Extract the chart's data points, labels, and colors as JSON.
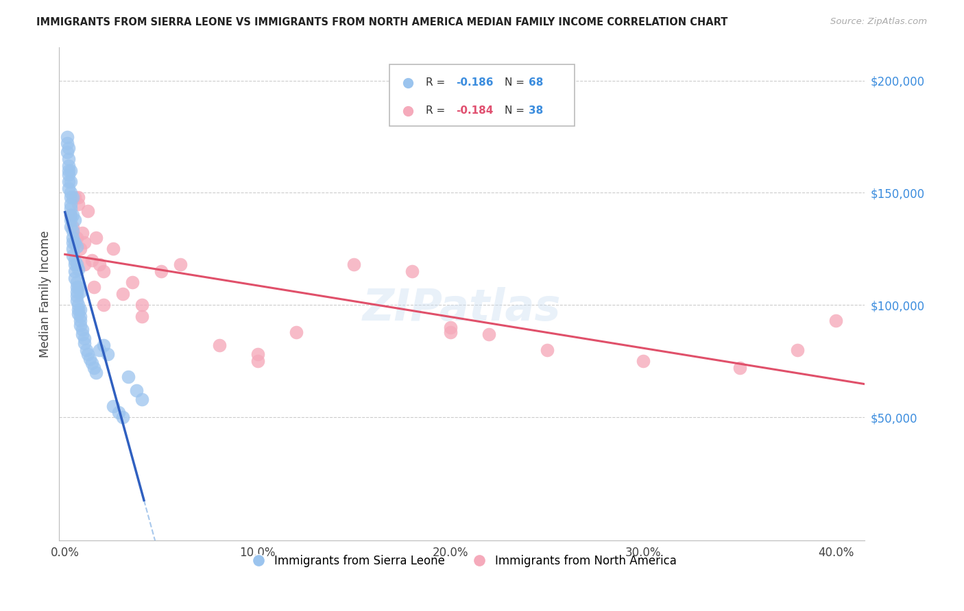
{
  "title": "IMMIGRANTS FROM SIERRA LEONE VS IMMIGRANTS FROM NORTH AMERICA MEDIAN FAMILY INCOME CORRELATION CHART",
  "source": "Source: ZipAtlas.com",
  "ylabel": "Median Family Income",
  "xlabel_ticks": [
    "0.0%",
    "10.0%",
    "20.0%",
    "30.0%",
    "40.0%"
  ],
  "xlabel_vals": [
    0.0,
    0.1,
    0.2,
    0.3,
    0.4
  ],
  "ytick_labels": [
    "$50,000",
    "$100,000",
    "$150,000",
    "$200,000"
  ],
  "ytick_vals": [
    50000,
    100000,
    150000,
    200000
  ],
  "ylim": [
    -5000,
    215000
  ],
  "xlim": [
    -0.003,
    0.415
  ],
  "color_blue": "#9BC4EE",
  "color_pink": "#F5AABB",
  "color_line_blue_solid": "#3060C0",
  "color_line_blue_dash": "#A8C8EC",
  "color_line_pink": "#E0506A",
  "color_grid": "#CCCCCC",
  "color_axis": "#BBBBBB",
  "color_label_blue": "#3C8DDE",
  "color_r_val_blue": "#3C8DDE",
  "color_n_val_blue": "#3C8DDE",
  "color_r_val_pink": "#E05070",
  "color_n_val_pink": "#3C8DDE",
  "sierra_leone_x": [
    0.001,
    0.001,
    0.001,
    0.002,
    0.002,
    0.002,
    0.002,
    0.002,
    0.002,
    0.003,
    0.003,
    0.003,
    0.003,
    0.003,
    0.003,
    0.003,
    0.004,
    0.004,
    0.004,
    0.004,
    0.004,
    0.005,
    0.005,
    0.005,
    0.005,
    0.006,
    0.006,
    0.006,
    0.006,
    0.006,
    0.007,
    0.007,
    0.007,
    0.008,
    0.008,
    0.008,
    0.009,
    0.009,
    0.01,
    0.01,
    0.011,
    0.012,
    0.013,
    0.014,
    0.015,
    0.016,
    0.018,
    0.02,
    0.022,
    0.025,
    0.028,
    0.03,
    0.033,
    0.037,
    0.04,
    0.002,
    0.003,
    0.004,
    0.005,
    0.006,
    0.007,
    0.008,
    0.003,
    0.004,
    0.005,
    0.006,
    0.007,
    0.008
  ],
  "sierra_leone_y": [
    175000,
    172000,
    168000,
    165000,
    162000,
    160000,
    158000,
    155000,
    152000,
    150000,
    148000,
    145000,
    143000,
    140000,
    138000,
    135000,
    133000,
    130000,
    128000,
    125000,
    122000,
    120000,
    118000,
    115000,
    112000,
    110000,
    108000,
    106000,
    104000,
    102000,
    100000,
    98000,
    96000,
    95000,
    93000,
    91000,
    89000,
    87000,
    85000,
    83000,
    80000,
    78000,
    76000,
    74000,
    72000,
    70000,
    80000,
    82000,
    78000,
    55000,
    52000,
    50000,
    68000,
    62000,
    58000,
    170000,
    155000,
    140000,
    128000,
    118000,
    108000,
    98000,
    160000,
    148000,
    138000,
    126000,
    116000,
    106000
  ],
  "north_america_x": [
    0.003,
    0.004,
    0.005,
    0.006,
    0.007,
    0.008,
    0.009,
    0.01,
    0.012,
    0.014,
    0.016,
    0.018,
    0.02,
    0.025,
    0.03,
    0.035,
    0.04,
    0.05,
    0.06,
    0.08,
    0.1,
    0.12,
    0.15,
    0.18,
    0.2,
    0.22,
    0.25,
    0.3,
    0.35,
    0.38,
    0.4,
    0.007,
    0.01,
    0.015,
    0.02,
    0.04,
    0.1,
    0.2
  ],
  "north_america_y": [
    140000,
    135000,
    148000,
    130000,
    145000,
    125000,
    132000,
    128000,
    142000,
    120000,
    130000,
    118000,
    115000,
    125000,
    105000,
    110000,
    100000,
    115000,
    118000,
    82000,
    78000,
    88000,
    118000,
    115000,
    90000,
    87000,
    80000,
    75000,
    72000,
    80000,
    93000,
    148000,
    118000,
    108000,
    100000,
    95000,
    75000,
    88000
  ],
  "watermark": "ZIPatlas",
  "background_color": "#FFFFFF",
  "legend1_r_label": "R = ",
  "legend1_r_val": "-0.186",
  "legend1_n_label": "N = ",
  "legend1_n_val": "68",
  "legend2_r_label": "R = ",
  "legend2_r_val": "-0.184",
  "legend2_n_label": "N = ",
  "legend2_n_val": "38",
  "bottom_legend1": "Immigrants from Sierra Leone",
  "bottom_legend2": "Immigrants from North America"
}
